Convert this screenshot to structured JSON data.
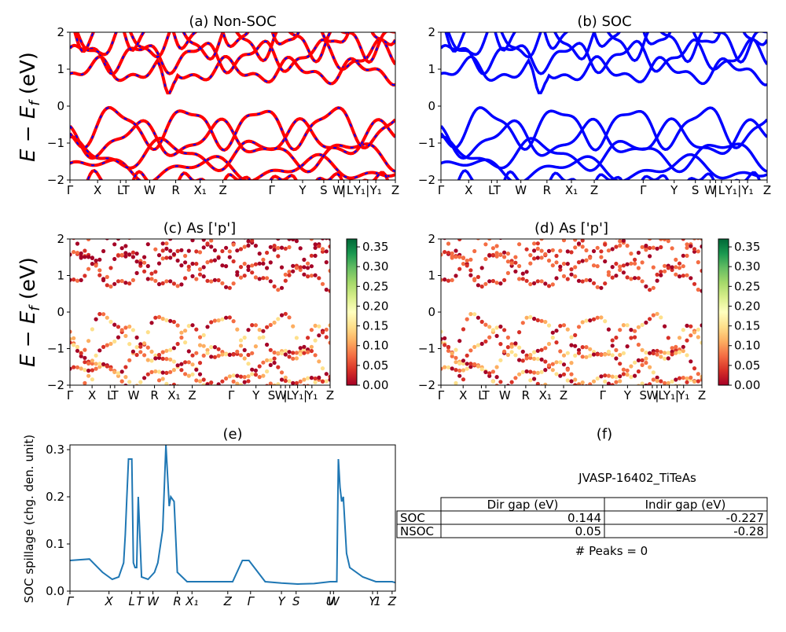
{
  "figure": {
    "ylabel_energy": "E − E_f (eV)",
    "ylabel_spillage": "SOC spillage (chg. den. unit)"
  },
  "chart_data": [
    {
      "type": "line",
      "title": "(a) Non-SOC",
      "ylim": [
        -2,
        2
      ],
      "yticks": [
        "2",
        "1",
        "0",
        "−1",
        "−2"
      ],
      "xticks": [
        "Γ",
        "X",
        "L",
        "T",
        "W",
        "R",
        "X₁",
        "Z",
        "Γ",
        "Y",
        "S",
        "W",
        "|",
        "L",
        "Y₁",
        "|",
        "Y₁",
        "Z"
      ],
      "colors": [
        "#ff0000",
        "#0000ff"
      ]
    },
    {
      "type": "line",
      "title": "(b) SOC",
      "ylim": [
        -2,
        2
      ],
      "yticks": [
        "2",
        "1",
        "0",
        "−1",
        "−2"
      ],
      "xticks": [
        "Γ",
        "X",
        "L",
        "T",
        "W",
        "R",
        "X₁",
        "Z",
        "Γ",
        "Y",
        "S",
        "W",
        "|",
        "L",
        "Y₁",
        "|",
        "Y₁",
        "Z"
      ],
      "colors": [
        "#0000ff"
      ]
    },
    {
      "type": "scatter",
      "title": "(c)  As ['p']",
      "ylim": [
        -2,
        2
      ],
      "yticks": [
        "2",
        "1",
        "0",
        "−1",
        "−2"
      ],
      "xticks": [
        "Γ",
        "X",
        "L",
        "T",
        "W",
        "R",
        "X₁",
        "Z",
        "Γ",
        "Y",
        "S",
        "W",
        "|",
        "L",
        "Y₁",
        "|",
        "Y₁",
        "Z"
      ],
      "colorbar_ticks": [
        "0.35",
        "0.30",
        "0.25",
        "0.20",
        "0.15",
        "0.10",
        "0.05",
        "0.00"
      ],
      "colormap": "RdYlGn"
    },
    {
      "type": "scatter",
      "title": "(d) As ['p']",
      "ylim": [
        -2,
        2
      ],
      "yticks": [
        "2",
        "1",
        "0",
        "−1",
        "−2"
      ],
      "xticks": [
        "Γ",
        "X",
        "L",
        "T",
        "W",
        "R",
        "X₁",
        "Z",
        "Γ",
        "Y",
        "S",
        "W",
        "|",
        "L",
        "Y₁",
        "|",
        "Y₁",
        "Z"
      ],
      "colorbar_ticks": [
        "0.35",
        "0.30",
        "0.25",
        "0.20",
        "0.15",
        "0.10",
        "0.05",
        "0.00"
      ],
      "colormap": "RdYlGn"
    },
    {
      "type": "line",
      "title": "(e)",
      "ylabel": "SOC spillage (chg. den. unit)",
      "ylim": [
        0,
        0.31
      ],
      "yticks": [
        "0.3",
        "0.2",
        "0.1",
        "0.0"
      ],
      "xticks": [
        "Γ",
        "X",
        "L",
        "T",
        "W",
        "R",
        "X₁",
        "Z",
        "Γ",
        "Y",
        "S",
        "U",
        "W",
        "Y",
        "1",
        "Z"
      ],
      "color": "#1f77b4",
      "x": [
        0,
        0.06,
        0.1,
        0.13,
        0.15,
        0.165,
        0.17,
        0.175,
        0.18,
        0.19,
        0.195,
        0.2,
        0.205,
        0.21,
        0.22,
        0.24,
        0.26,
        0.27,
        0.285,
        0.295,
        0.305,
        0.31,
        0.32,
        0.33,
        0.36,
        0.45,
        0.5,
        0.53,
        0.55,
        0.6,
        0.65,
        0.7,
        0.75,
        0.8,
        0.82,
        0.825,
        0.83,
        0.835,
        0.84,
        0.85,
        0.86,
        0.9,
        0.94,
        0.99,
        1.0
      ],
      "y": [
        0.065,
        0.068,
        0.04,
        0.025,
        0.03,
        0.06,
        0.12,
        0.2,
        0.28,
        0.28,
        0.06,
        0.05,
        0.05,
        0.2,
        0.03,
        0.025,
        0.04,
        0.06,
        0.13,
        0.31,
        0.18,
        0.2,
        0.19,
        0.04,
        0.02,
        0.02,
        0.02,
        0.065,
        0.065,
        0.02,
        0.017,
        0.015,
        0.016,
        0.02,
        0.02,
        0.28,
        0.22,
        0.19,
        0.2,
        0.08,
        0.05,
        0.03,
        0.02,
        0.02,
        0.018
      ]
    }
  ],
  "panel_f": {
    "title": "(f)",
    "material": "JVASP-16402_TiTeAs",
    "headers": [
      "Dir gap (eV)",
      "Indir gap (eV)"
    ],
    "rows": [
      {
        "label": "SOC",
        "dir": "0.144",
        "indir": "-0.227"
      },
      {
        "label": "NSOC",
        "dir": "0.05",
        "indir": "-0.28"
      }
    ],
    "peaks": "# Peaks = 0"
  }
}
